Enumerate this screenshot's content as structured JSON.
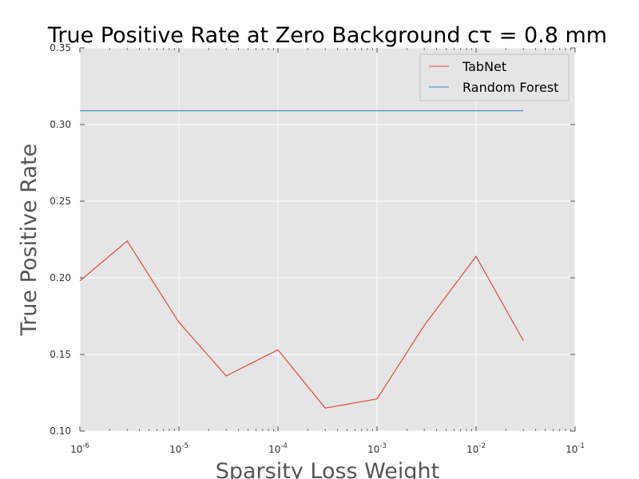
{
  "chart_data": {
    "type": "line",
    "title": "True Positive Rate at Zero Background cτ = 0.8 mm",
    "xlabel": "Sparsity Loss Weight",
    "ylabel": "True Positive Rate",
    "xscale": "log",
    "xlim": [
      1e-06,
      0.1
    ],
    "ylim": [
      0.1,
      0.35
    ],
    "grid": true,
    "legend_position": "top-right",
    "xticks": [
      {
        "value": 1e-06,
        "base": "10",
        "exp": "-6"
      },
      {
        "value": 1e-05,
        "base": "10",
        "exp": "-5"
      },
      {
        "value": 0.0001,
        "base": "10",
        "exp": "-4"
      },
      {
        "value": 0.001,
        "base": "10",
        "exp": "-3"
      },
      {
        "value": 0.01,
        "base": "10",
        "exp": "-2"
      },
      {
        "value": 0.1,
        "base": "10",
        "exp": "-1"
      }
    ],
    "yticks": [
      {
        "value": 0.1,
        "label": "0.10"
      },
      {
        "value": 0.15,
        "label": "0.15"
      },
      {
        "value": 0.2,
        "label": "0.20"
      },
      {
        "value": 0.25,
        "label": "0.25"
      },
      {
        "value": 0.3,
        "label": "0.30"
      },
      {
        "value": 0.35,
        "label": "0.35"
      }
    ],
    "series": [
      {
        "name": "TabNet",
        "color": "#e24a33",
        "x": [
          1e-06,
          3e-06,
          1e-05,
          3e-05,
          0.0001,
          0.0003,
          0.001,
          0.003,
          0.01,
          0.03
        ],
        "y": [
          0.198,
          0.224,
          0.171,
          0.136,
          0.153,
          0.115,
          0.121,
          0.169,
          0.214,
          0.159
        ]
      },
      {
        "name": "Random Forest",
        "color": "#348abd",
        "x": [
          1e-06,
          0.03
        ],
        "y": [
          0.309,
          0.309
        ]
      }
    ]
  }
}
